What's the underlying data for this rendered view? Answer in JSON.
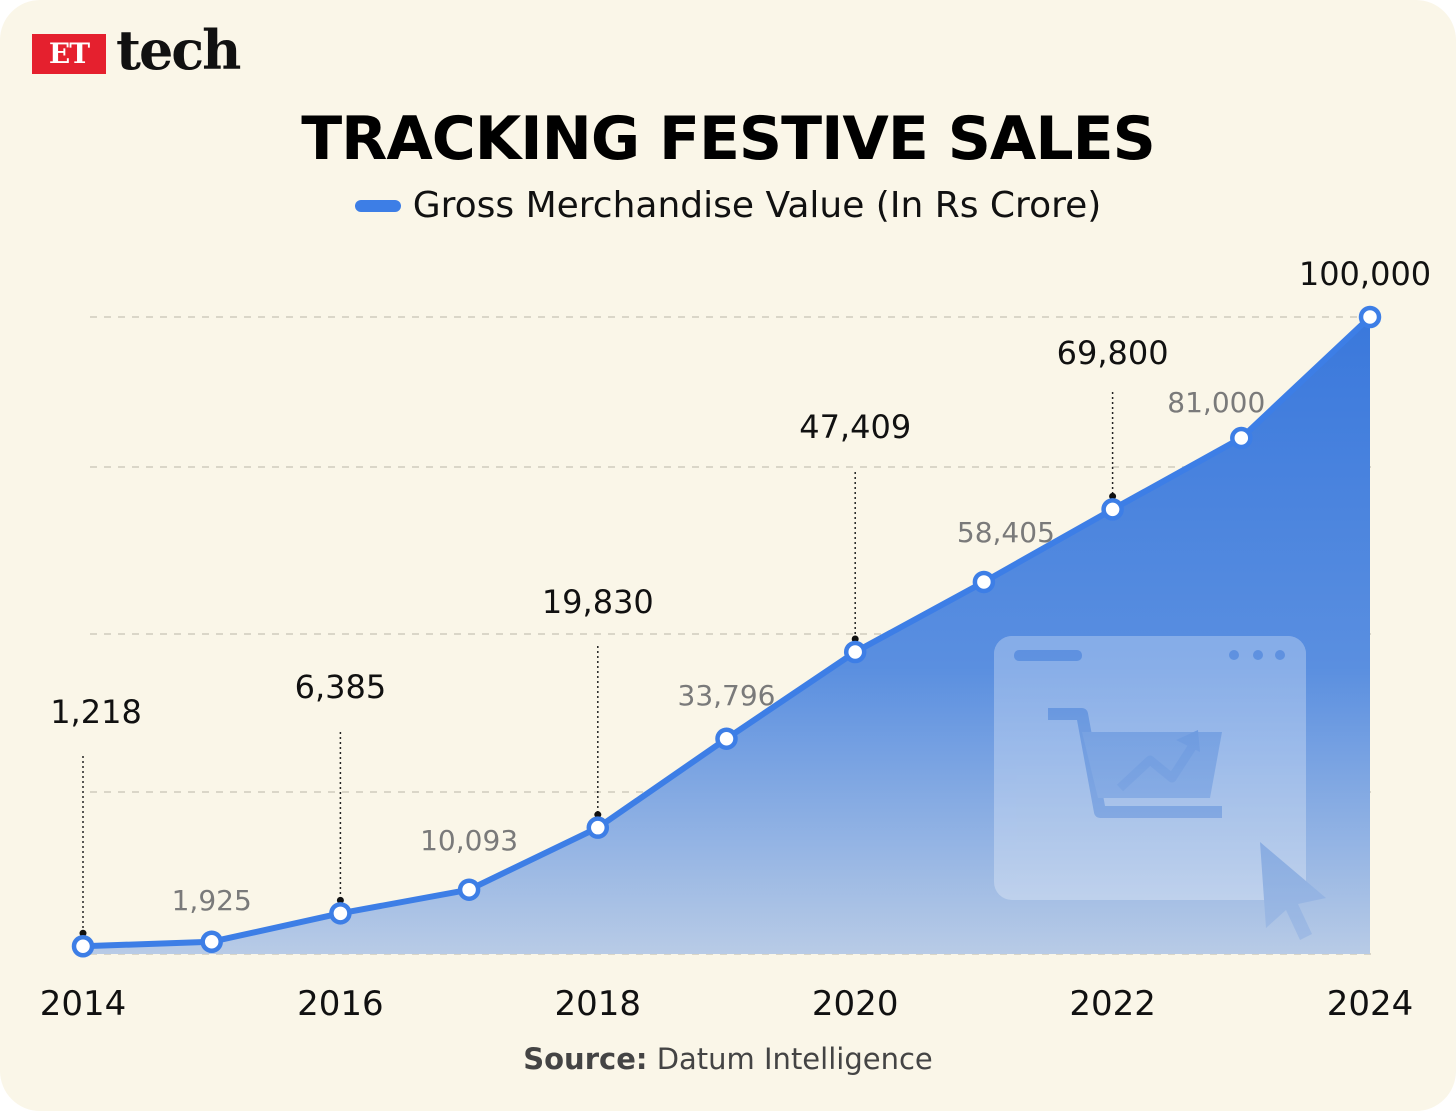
{
  "brand": {
    "badge": "ET",
    "word": "tech"
  },
  "title": "TRACKING FESTIVE SALES",
  "legend": {
    "label": "Gross Merchandise Value (In Rs Crore)"
  },
  "source": {
    "key": "Source:",
    "value": "Datum Intelligence"
  },
  "colors": {
    "line": "#3d7ee6",
    "area_top": "#3a78dc",
    "area_bottom": "#b8cbe6",
    "background": "#faf6e8",
    "brand_red": "#e5202e",
    "label_dark": "#111111",
    "label_muted": "#7a7a7a"
  },
  "chart_data": {
    "type": "area",
    "title": "TRACKING FESTIVE SALES",
    "xlabel": "",
    "ylabel": "",
    "x": [
      2014,
      2015,
      2016,
      2017,
      2018,
      2019,
      2020,
      2021,
      2022,
      2023,
      2024
    ],
    "x_tick_labels": [
      "2014",
      "2016",
      "2018",
      "2020",
      "2022",
      "2024"
    ],
    "series": [
      {
        "name": "Gross Merchandise Value (In Rs Crore)",
        "values": [
          1218,
          1925,
          6385,
          10093,
          19830,
          33796,
          47409,
          58405,
          69800,
          81000,
          100000
        ],
        "labels": [
          "1,218",
          "1,925",
          "6,385",
          "10,093",
          "19,830",
          "33,796",
          "47,409",
          "58,405",
          "69,800",
          "81,000",
          "100,000"
        ]
      }
    ],
    "highlighted_years": [
      2014,
      2016,
      2018,
      2020,
      2022,
      2024
    ],
    "ylim": [
      0,
      100000
    ],
    "grid": "horizontal-dashed",
    "legend_position": "top-center"
  }
}
